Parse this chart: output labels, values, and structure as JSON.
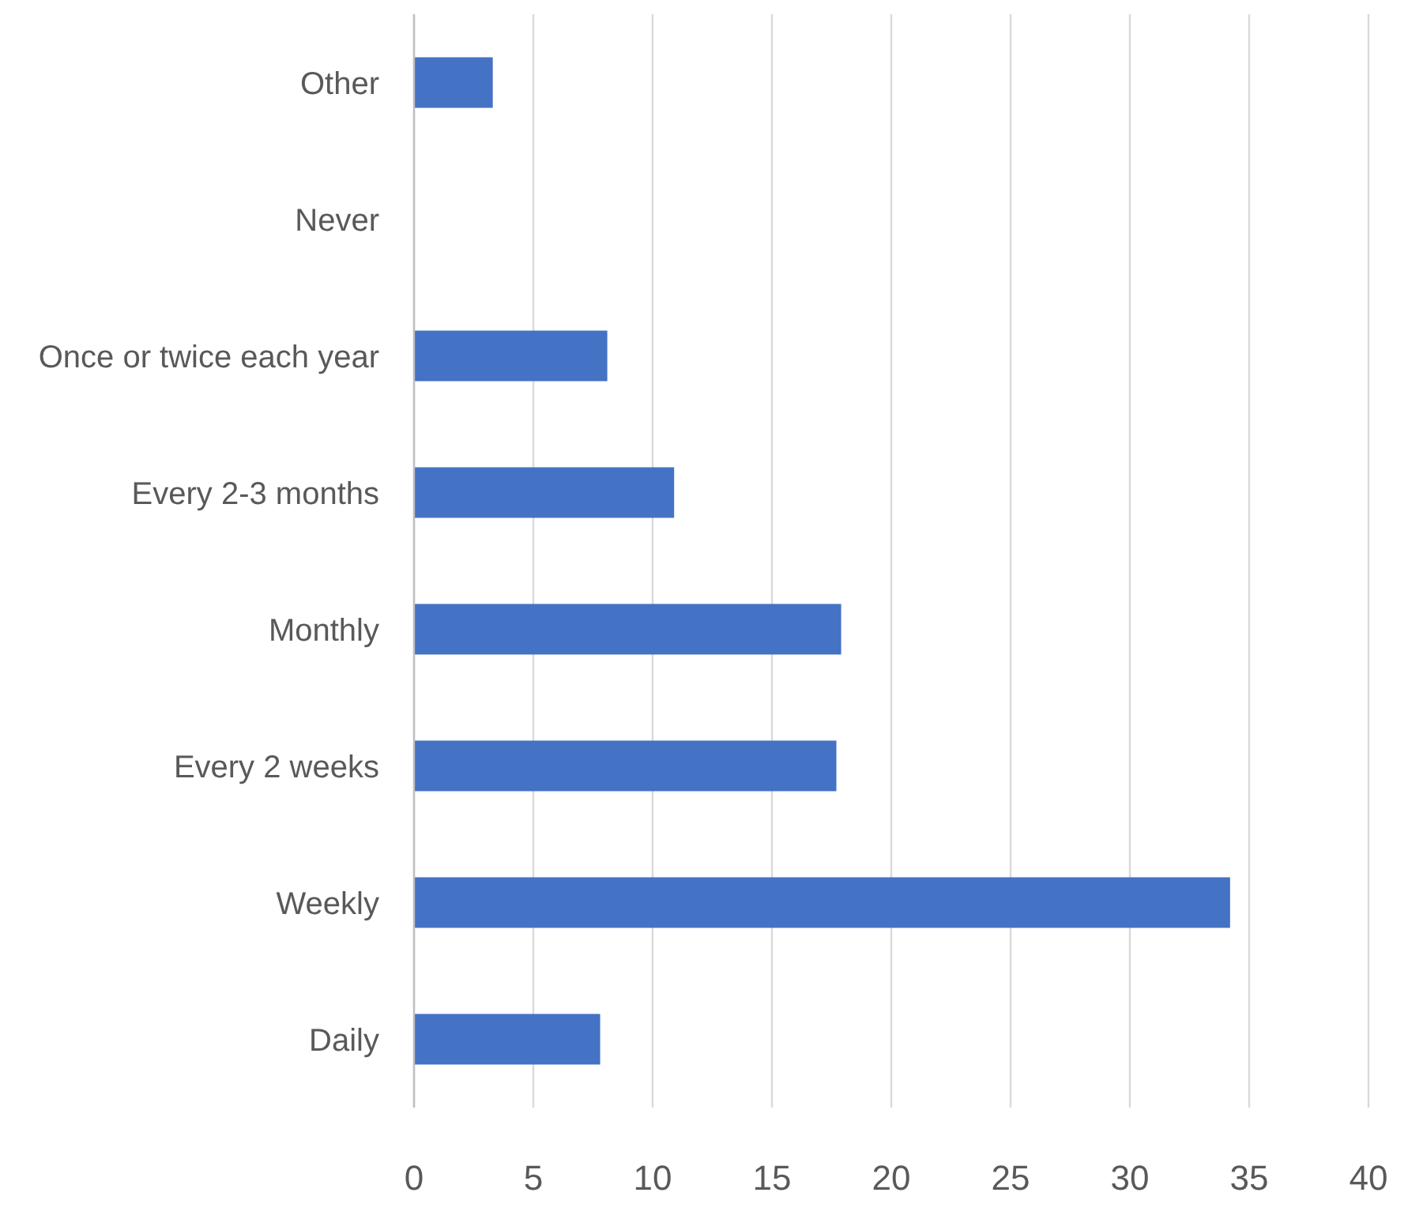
{
  "chart_data": {
    "type": "bar",
    "orientation": "horizontal",
    "categories": [
      "Other",
      "Never",
      "Once or twice each year",
      "Every 2-3 months",
      "Monthly",
      "Every 2 weeks",
      "Weekly",
      "Daily"
    ],
    "values": [
      3.3,
      0,
      8.1,
      10.9,
      17.9,
      17.7,
      34.2,
      7.8
    ],
    "color": "#4472c4",
    "xlim": [
      0,
      40
    ],
    "xticks": [
      0,
      5,
      10,
      15,
      20,
      25,
      30,
      35,
      40
    ],
    "grid": "x"
  }
}
